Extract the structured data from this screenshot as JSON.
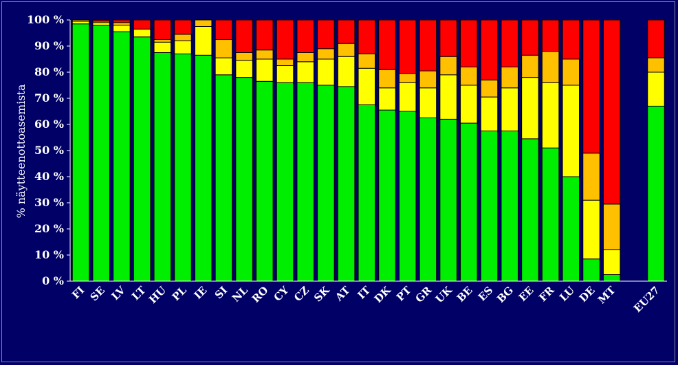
{
  "chart_data": {
    "type": "bar",
    "stacked": true,
    "ylabel": "% näytteenottoasemista",
    "ylim": [
      0,
      100
    ],
    "yticks": [
      "0 %",
      "10 %",
      "20 %",
      "30 %",
      "40 %",
      "50 %",
      "60 %",
      "70 %",
      "80 %",
      "90 %",
      "100 %"
    ],
    "categories": [
      "FI",
      "SE",
      "LV",
      "LT",
      "HU",
      "PL",
      "IE",
      "SI",
      "NL",
      "RO",
      "CY",
      "CZ",
      "SK",
      "AT",
      "IT",
      "DK",
      "PT",
      "GR",
      "UK",
      "BE",
      "ES",
      "BG",
      "EE",
      "FR",
      "LU",
      "DE",
      "MT",
      "EU27"
    ],
    "colors": [
      "#00ee00",
      "#ffff00",
      "#ffc000",
      "#ff0000"
    ],
    "series": [
      {
        "values": [
          98.5,
          98,
          95.5,
          93.5,
          87.5,
          87,
          86.5,
          79,
          78,
          76.5,
          76,
          76,
          75,
          74.5,
          67.5,
          65.5,
          65,
          62.5,
          62,
          60.5,
          57.5,
          57.5,
          54.5,
          51,
          40,
          8.5,
          2.5,
          67
        ]
      },
      {
        "values": [
          1,
          1,
          2.5,
          3,
          4,
          5,
          11,
          6.5,
          6.5,
          8.5,
          6.5,
          8,
          10,
          11.5,
          14,
          8.5,
          11,
          11.5,
          17,
          14.5,
          13,
          16.5,
          23.5,
          25,
          35,
          22.5,
          9.5,
          13
        ]
      },
      {
        "values": [
          0.5,
          0.5,
          1,
          0,
          1,
          2.5,
          2.5,
          7,
          3,
          3.5,
          2.5,
          3.5,
          4,
          5,
          5.5,
          7,
          3.5,
          6.5,
          7,
          7,
          6.5,
          8,
          8.5,
          12,
          10,
          18,
          17.5,
          5.5
        ]
      },
      {
        "values": [
          0,
          0.5,
          1,
          3.5,
          7.5,
          5.5,
          0,
          7.5,
          12.5,
          11.5,
          15,
          12.5,
          11,
          9,
          13,
          19,
          20.5,
          19.5,
          14,
          18,
          23,
          18,
          13.5,
          12,
          15,
          51,
          70.5,
          14.5
        ]
      }
    ]
  }
}
